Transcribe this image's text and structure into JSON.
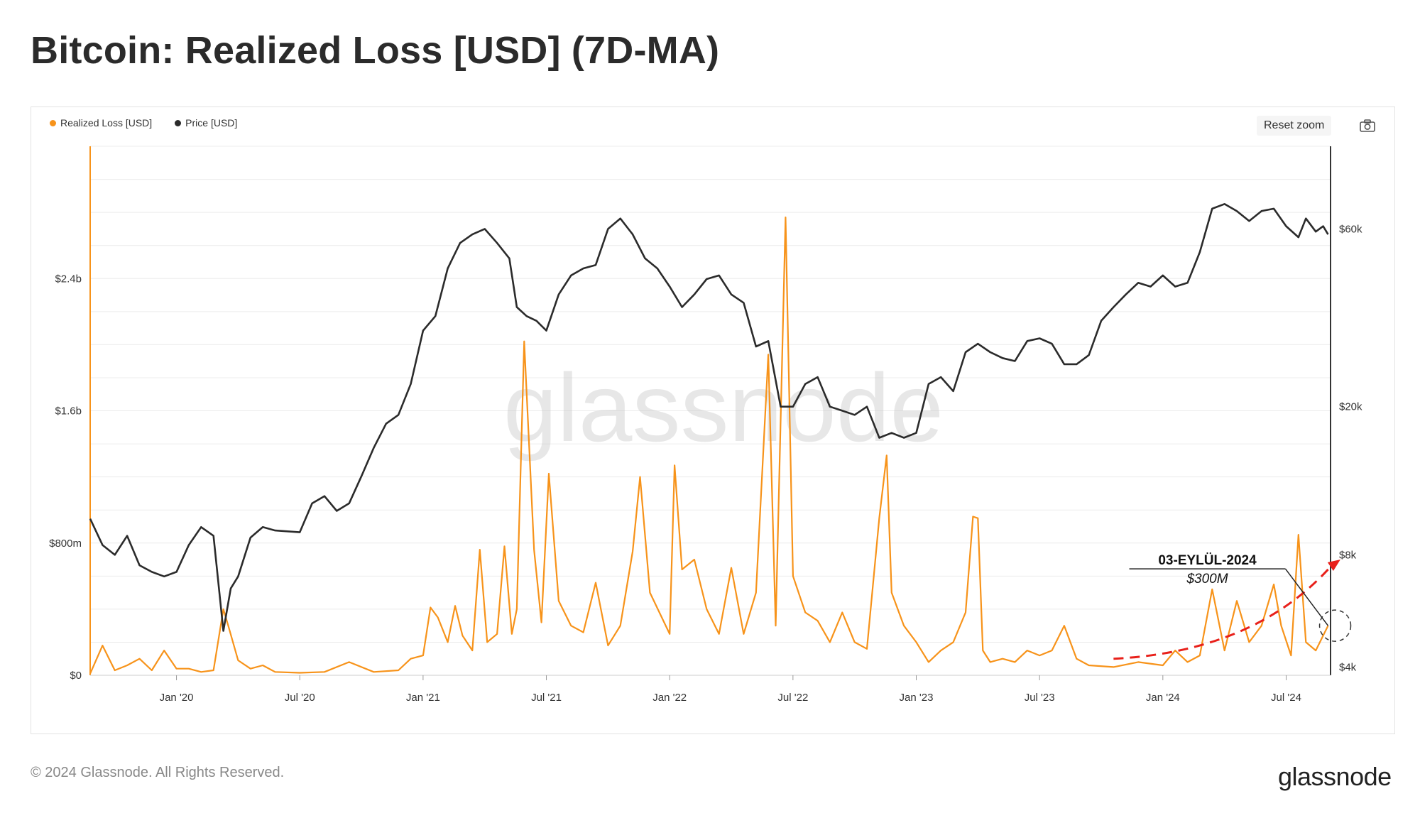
{
  "title": "Bitcoin: Realized Loss [USD] (7D-MA)",
  "legend": [
    {
      "label": "Realized Loss [USD]",
      "color": "#f7931a"
    },
    {
      "label": "Price [USD]",
      "color": "#2b2b2b"
    }
  ],
  "toolbar": {
    "reset_zoom_label": "Reset zoom",
    "camera_icon": "camera-icon"
  },
  "watermark": "glassnode",
  "footer": {
    "copyright": "© 2024 Glassnode. All Rights Reserved.",
    "brand": "glassnode"
  },
  "colors": {
    "loss": "#f7931a",
    "price": "#2b2b2b",
    "grid": "#ececec",
    "trend": "#e8201a"
  },
  "chart_data": {
    "type": "line",
    "title": "Bitcoin: Realized Loss [USD] (7D-MA)",
    "x_tick_labels": [
      "Jan '20",
      "Jul '20",
      "Jan '21",
      "Jul '21",
      "Jan '22",
      "Jul '22",
      "Jan '23",
      "Jul '23",
      "Jan '24",
      "Jul '24"
    ],
    "x_tick_years": [
      2020.0,
      2020.5,
      2021.0,
      2021.5,
      2022.0,
      2022.5,
      2023.0,
      2023.5,
      2024.0,
      2024.5
    ],
    "x_range": [
      2019.65,
      2024.68
    ],
    "left_axis": {
      "label": "Realized Loss [USD]",
      "ticks": [
        0,
        800,
        1600,
        2400
      ],
      "tick_labels": [
        "$0",
        "$800m",
        "$1.6b",
        "$2.4b"
      ],
      "range": [
        0,
        3200
      ],
      "unit": "USD millions"
    },
    "right_axis": {
      "label": "Price [USD]",
      "scale": "log",
      "ticks": [
        4000,
        8000,
        20000,
        60000
      ],
      "tick_labels": [
        "$4k",
        "$8k",
        "$20k",
        "$60k"
      ],
      "range": [
        3800,
        100000
      ]
    },
    "series": [
      {
        "name": "Realized Loss [USD]",
        "axis": "left",
        "points": [
          [
            2019.65,
            10
          ],
          [
            2019.7,
            180
          ],
          [
            2019.75,
            30
          ],
          [
            2019.8,
            60
          ],
          [
            2019.85,
            100
          ],
          [
            2019.9,
            30
          ],
          [
            2019.95,
            150
          ],
          [
            2020.0,
            40
          ],
          [
            2020.05,
            40
          ],
          [
            2020.1,
            20
          ],
          [
            2020.15,
            30
          ],
          [
            2020.19,
            400
          ],
          [
            2020.21,
            300
          ],
          [
            2020.25,
            90
          ],
          [
            2020.3,
            40
          ],
          [
            2020.35,
            60
          ],
          [
            2020.4,
            20
          ],
          [
            2020.5,
            15
          ],
          [
            2020.6,
            20
          ],
          [
            2020.7,
            80
          ],
          [
            2020.8,
            20
          ],
          [
            2020.9,
            30
          ],
          [
            2020.95,
            100
          ],
          [
            2021.0,
            120
          ],
          [
            2021.03,
            410
          ],
          [
            2021.06,
            350
          ],
          [
            2021.1,
            200
          ],
          [
            2021.13,
            420
          ],
          [
            2021.16,
            240
          ],
          [
            2021.2,
            150
          ],
          [
            2021.23,
            760
          ],
          [
            2021.26,
            200
          ],
          [
            2021.3,
            250
          ],
          [
            2021.33,
            780
          ],
          [
            2021.36,
            250
          ],
          [
            2021.38,
            400
          ],
          [
            2021.41,
            2020
          ],
          [
            2021.45,
            760
          ],
          [
            2021.48,
            320
          ],
          [
            2021.51,
            1220
          ],
          [
            2021.55,
            450
          ],
          [
            2021.6,
            300
          ],
          [
            2021.65,
            260
          ],
          [
            2021.7,
            560
          ],
          [
            2021.75,
            180
          ],
          [
            2021.8,
            300
          ],
          [
            2021.85,
            750
          ],
          [
            2021.88,
            1200
          ],
          [
            2021.92,
            500
          ],
          [
            2022.0,
            250
          ],
          [
            2022.02,
            1270
          ],
          [
            2022.05,
            640
          ],
          [
            2022.1,
            700
          ],
          [
            2022.15,
            400
          ],
          [
            2022.2,
            250
          ],
          [
            2022.25,
            650
          ],
          [
            2022.3,
            250
          ],
          [
            2022.35,
            500
          ],
          [
            2022.4,
            1940
          ],
          [
            2022.43,
            300
          ],
          [
            2022.47,
            2770
          ],
          [
            2022.5,
            600
          ],
          [
            2022.55,
            380
          ],
          [
            2022.6,
            330
          ],
          [
            2022.65,
            200
          ],
          [
            2022.7,
            380
          ],
          [
            2022.75,
            200
          ],
          [
            2022.8,
            160
          ],
          [
            2022.85,
            950
          ],
          [
            2022.88,
            1330
          ],
          [
            2022.9,
            500
          ],
          [
            2022.95,
            300
          ],
          [
            2023.0,
            200
          ],
          [
            2023.05,
            80
          ],
          [
            2023.1,
            150
          ],
          [
            2023.15,
            200
          ],
          [
            2023.2,
            380
          ],
          [
            2023.23,
            960
          ],
          [
            2023.25,
            950
          ],
          [
            2023.27,
            150
          ],
          [
            2023.3,
            80
          ],
          [
            2023.35,
            100
          ],
          [
            2023.4,
            80
          ],
          [
            2023.45,
            150
          ],
          [
            2023.5,
            120
          ],
          [
            2023.55,
            150
          ],
          [
            2023.6,
            300
          ],
          [
            2023.65,
            100
          ],
          [
            2023.7,
            60
          ],
          [
            2023.8,
            50
          ],
          [
            2023.9,
            80
          ],
          [
            2024.0,
            60
          ],
          [
            2024.05,
            150
          ],
          [
            2024.1,
            80
          ],
          [
            2024.15,
            120
          ],
          [
            2024.2,
            520
          ],
          [
            2024.25,
            150
          ],
          [
            2024.3,
            450
          ],
          [
            2024.35,
            200
          ],
          [
            2024.4,
            300
          ],
          [
            2024.45,
            550
          ],
          [
            2024.48,
            300
          ],
          [
            2024.52,
            120
          ],
          [
            2024.55,
            850
          ],
          [
            2024.58,
            200
          ],
          [
            2024.62,
            150
          ],
          [
            2024.67,
            300
          ]
        ]
      },
      {
        "name": "Price [USD]",
        "axis": "right",
        "points": [
          [
            2019.65,
            10000
          ],
          [
            2019.7,
            8500
          ],
          [
            2019.75,
            8000
          ],
          [
            2019.8,
            9000
          ],
          [
            2019.85,
            7500
          ],
          [
            2019.9,
            7200
          ],
          [
            2019.95,
            7000
          ],
          [
            2020.0,
            7200
          ],
          [
            2020.05,
            8500
          ],
          [
            2020.1,
            9500
          ],
          [
            2020.15,
            9000
          ],
          [
            2020.19,
            5000
          ],
          [
            2020.22,
            6500
          ],
          [
            2020.25,
            7000
          ],
          [
            2020.3,
            8900
          ],
          [
            2020.35,
            9500
          ],
          [
            2020.4,
            9300
          ],
          [
            2020.5,
            9200
          ],
          [
            2020.55,
            11000
          ],
          [
            2020.6,
            11500
          ],
          [
            2020.65,
            10500
          ],
          [
            2020.7,
            11000
          ],
          [
            2020.75,
            13000
          ],
          [
            2020.8,
            15500
          ],
          [
            2020.85,
            18000
          ],
          [
            2020.9,
            19000
          ],
          [
            2020.95,
            23000
          ],
          [
            2021.0,
            32000
          ],
          [
            2021.05,
            35000
          ],
          [
            2021.1,
            47000
          ],
          [
            2021.15,
            55000
          ],
          [
            2021.2,
            58000
          ],
          [
            2021.25,
            60000
          ],
          [
            2021.3,
            55000
          ],
          [
            2021.35,
            50000
          ],
          [
            2021.38,
            37000
          ],
          [
            2021.42,
            35000
          ],
          [
            2021.46,
            34000
          ],
          [
            2021.5,
            32000
          ],
          [
            2021.55,
            40000
          ],
          [
            2021.6,
            45000
          ],
          [
            2021.65,
            47000
          ],
          [
            2021.7,
            48000
          ],
          [
            2021.75,
            60000
          ],
          [
            2021.8,
            64000
          ],
          [
            2021.85,
            58000
          ],
          [
            2021.9,
            50000
          ],
          [
            2021.95,
            47000
          ],
          [
            2022.0,
            42000
          ],
          [
            2022.05,
            37000
          ],
          [
            2022.1,
            40000
          ],
          [
            2022.15,
            44000
          ],
          [
            2022.2,
            45000
          ],
          [
            2022.25,
            40000
          ],
          [
            2022.3,
            38000
          ],
          [
            2022.35,
            29000
          ],
          [
            2022.4,
            30000
          ],
          [
            2022.45,
            20000
          ],
          [
            2022.5,
            20000
          ],
          [
            2022.55,
            23000
          ],
          [
            2022.6,
            24000
          ],
          [
            2022.65,
            20000
          ],
          [
            2022.7,
            19500
          ],
          [
            2022.75,
            19000
          ],
          [
            2022.8,
            20000
          ],
          [
            2022.85,
            16500
          ],
          [
            2022.9,
            17000
          ],
          [
            2022.95,
            16500
          ],
          [
            2023.0,
            17000
          ],
          [
            2023.05,
            23000
          ],
          [
            2023.1,
            24000
          ],
          [
            2023.15,
            22000
          ],
          [
            2023.2,
            28000
          ],
          [
            2023.25,
            29500
          ],
          [
            2023.3,
            28000
          ],
          [
            2023.35,
            27000
          ],
          [
            2023.4,
            26500
          ],
          [
            2023.45,
            30000
          ],
          [
            2023.5,
            30500
          ],
          [
            2023.55,
            29500
          ],
          [
            2023.6,
            26000
          ],
          [
            2023.65,
            26000
          ],
          [
            2023.7,
            27500
          ],
          [
            2023.75,
            34000
          ],
          [
            2023.8,
            37000
          ],
          [
            2023.85,
            40000
          ],
          [
            2023.9,
            43000
          ],
          [
            2023.95,
            42000
          ],
          [
            2024.0,
            45000
          ],
          [
            2024.05,
            42000
          ],
          [
            2024.1,
            43000
          ],
          [
            2024.15,
            52000
          ],
          [
            2024.2,
            68000
          ],
          [
            2024.25,
            70000
          ],
          [
            2024.3,
            67000
          ],
          [
            2024.35,
            63000
          ],
          [
            2024.4,
            67000
          ],
          [
            2024.45,
            68000
          ],
          [
            2024.5,
            61000
          ],
          [
            2024.55,
            57000
          ],
          [
            2024.58,
            64000
          ],
          [
            2024.62,
            59000
          ],
          [
            2024.65,
            61000
          ],
          [
            2024.67,
            58000
          ]
        ]
      }
    ],
    "annotation": {
      "date_label": "03-EYLÜL-2024",
      "value_label": "$300M",
      "year": 2024.67,
      "value": 300
    },
    "trend_arrow": {
      "from": [
        2023.8,
        100
      ],
      "to": [
        2024.72,
        700
      ],
      "style": "dashed",
      "color": "#e8201a"
    }
  }
}
